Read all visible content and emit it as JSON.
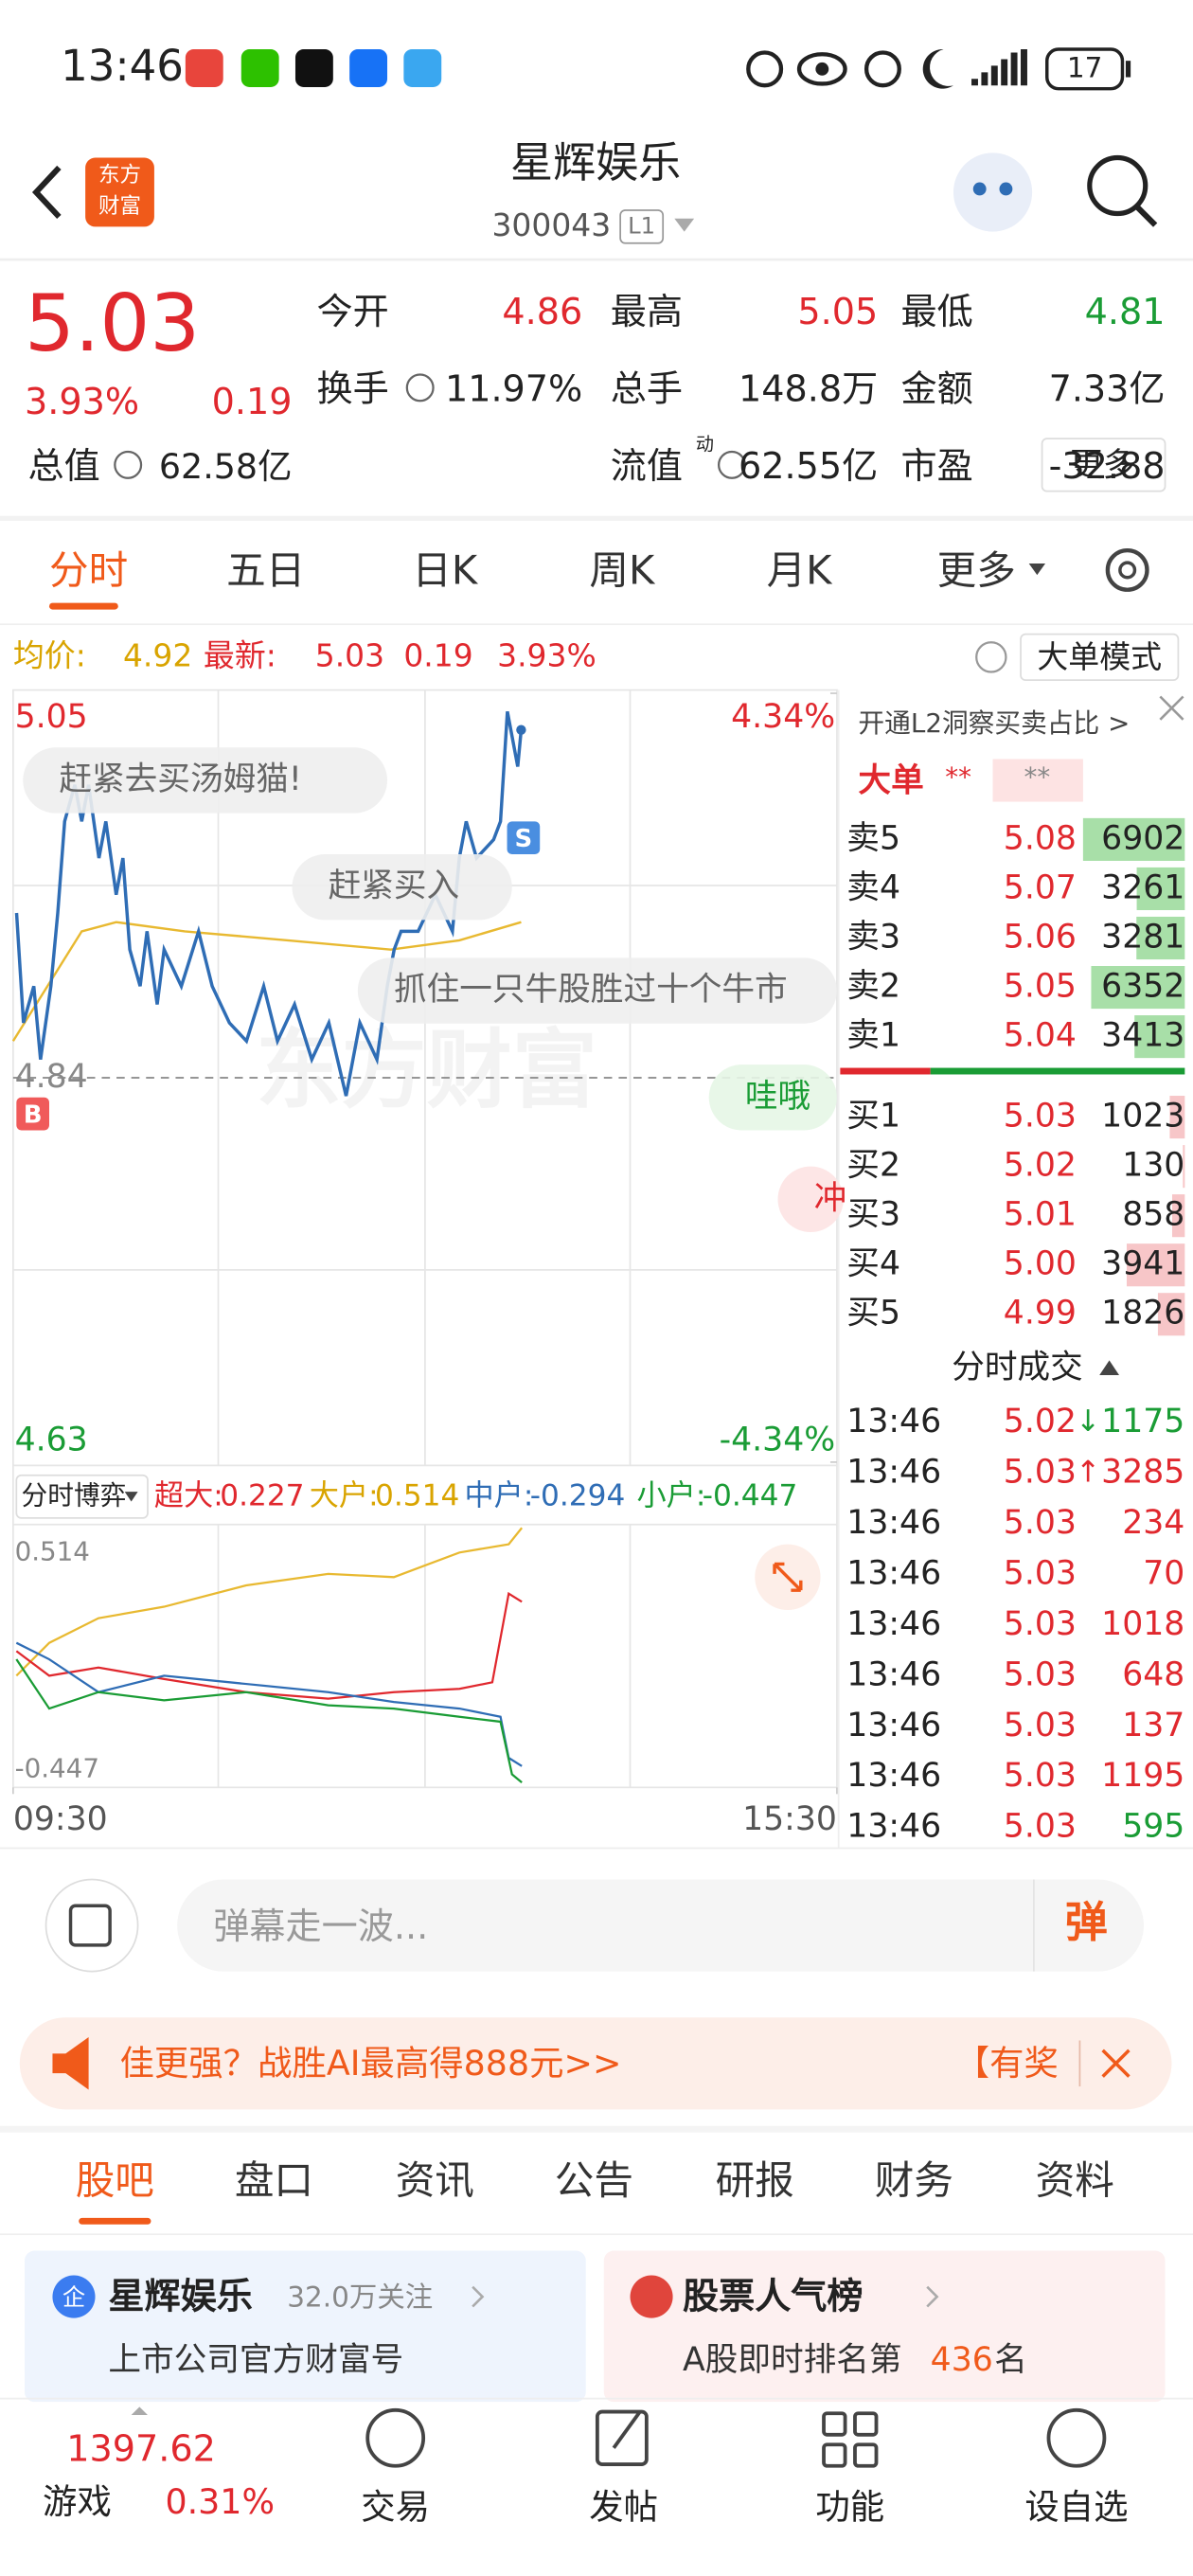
{
  "status_bar": {
    "time": "13:46",
    "battery": "17"
  },
  "header": {
    "logo": [
      "东方",
      "财富"
    ],
    "title": "星辉娱乐",
    "code": "300043",
    "level": "L1"
  },
  "quote": {
    "price": "5.03",
    "change_pct": "3.93%",
    "change": "0.19",
    "total_value": {
      "label": "总值",
      "value": "62.58亿"
    },
    "fields": [
      {
        "label": "今开",
        "value": "4.86",
        "color": "#e0282e"
      },
      {
        "label": "最高",
        "value": "5.05",
        "color": "#e0282e"
      },
      {
        "label": "最低",
        "value": "4.81",
        "color": "#1a9c35"
      },
      {
        "label": "换手",
        "value": "11.97%",
        "color": "#222222"
      },
      {
        "label": "总手",
        "value": "148.8万",
        "color": "#222222"
      },
      {
        "label": "金额",
        "value": "7.33亿",
        "color": "#222222"
      },
      {
        "label": "流值",
        "value": "62.55亿",
        "color": "#222222"
      },
      {
        "label": "市盈",
        "sup": "动",
        "value": "-32.88",
        "color": "#222222"
      }
    ],
    "more": "更多"
  },
  "tabs": {
    "items": [
      "分时",
      "五日",
      "日K",
      "周K",
      "月K",
      "更多"
    ],
    "active": 0
  },
  "info_bar": {
    "avg_label": "均价:",
    "avg": "4.92",
    "latest_label": "最新:",
    "latest": "5.03",
    "change": "0.19",
    "change_pct": "3.93%",
    "mode": "大单模式"
  },
  "chart_data": {
    "type": "line",
    "watermark": "东方财富",
    "xlim": [
      0,
      240
    ],
    "xticks": [
      {
        "value": 0,
        "label": "09:30"
      },
      {
        "value": 240,
        "label": "15:30"
      }
    ],
    "ylim": [
      4.63,
      5.05
    ],
    "yticks": [
      5.05,
      4.84,
      4.63
    ],
    "y2lim": [
      -4.34,
      4.34
    ],
    "y2ticks": [
      {
        "value": 4.34,
        "label": "4.34%"
      },
      {
        "value": -4.34,
        "label": "-4.34%"
      }
    ],
    "series": [
      {
        "name": "price",
        "color": "#2f6db5",
        "x": [
          1,
          3,
          6,
          8,
          11,
          13,
          15,
          18,
          20,
          22,
          25,
          27,
          30,
          32,
          34,
          37,
          39,
          42,
          44,
          49,
          54,
          58,
          63,
          68,
          73,
          77,
          82,
          87,
          92,
          97,
          101,
          106,
          109,
          111,
          113,
          118,
          123,
          128,
          130,
          132,
          135,
          140,
          142,
          144,
          147,
          148
        ],
        "values": [
          4.93,
          4.87,
          4.89,
          4.85,
          4.89,
          4.93,
          4.98,
          5.0,
          4.98,
          5.0,
          4.96,
          4.98,
          4.94,
          4.96,
          4.91,
          4.89,
          4.92,
          4.88,
          4.91,
          4.89,
          4.92,
          4.89,
          4.87,
          4.86,
          4.89,
          4.86,
          4.88,
          4.85,
          4.87,
          4.83,
          4.87,
          4.85,
          4.89,
          4.91,
          4.92,
          4.92,
          4.94,
          4.92,
          4.96,
          4.98,
          4.96,
          4.97,
          4.98,
          5.04,
          5.01,
          5.03
        ]
      },
      {
        "name": "avg",
        "color": "#e8b931",
        "x": [
          0,
          10,
          20,
          30,
          50,
          80,
          110,
          130,
          148
        ],
        "values": [
          4.86,
          4.89,
          4.92,
          4.925,
          4.92,
          4.915,
          4.91,
          4.915,
          4.925
        ]
      }
    ],
    "markers": [
      "B",
      "S"
    ],
    "danmaku": [
      "赶紧去买汤姆猫!",
      "赶紧买入",
      "抓住一只牛股胜过十个牛市",
      "哇哦",
      "冲"
    ]
  },
  "flow_bar": {
    "selector": "分时博弈",
    "items": [
      {
        "label": "超大:",
        "value": "0.227",
        "color": "#e0282e"
      },
      {
        "label": "大户:",
        "value": "0.514",
        "color": "#d9a400"
      },
      {
        "label": "中户:",
        "value": "-0.294",
        "color": "#2f6db5"
      },
      {
        "label": "小户:",
        "value": "-0.447",
        "color": "#1a9c35"
      }
    ],
    "max_label": "0.514",
    "min_label": "-0.447"
  },
  "order_book": {
    "promo": "开通L2洞察买卖占比 >",
    "big_order": "大单",
    "mask": [
      "**",
      "**"
    ],
    "sell": [
      {
        "label": "卖5",
        "price": "5.08",
        "volume": 6902
      },
      {
        "label": "卖4",
        "price": "5.07",
        "volume": 3261
      },
      {
        "label": "卖3",
        "price": "5.06",
        "volume": 3281
      },
      {
        "label": "卖2",
        "price": "5.05",
        "volume": 6352
      },
      {
        "label": "卖1",
        "price": "5.04",
        "volume": 3413
      }
    ],
    "buy": [
      {
        "label": "买1",
        "price": "5.03",
        "volume": 1023
      },
      {
        "label": "买2",
        "price": "5.02",
        "volume": 130
      },
      {
        "label": "买3",
        "price": "5.01",
        "volume": 858
      },
      {
        "label": "买4",
        "price": "5.00",
        "volume": 3941
      },
      {
        "label": "买5",
        "price": "4.99",
        "volume": 1826
      }
    ]
  },
  "trades": {
    "title": "分时成交",
    "rows": [
      {
        "time": "13:46",
        "price": "5.02",
        "arrow": "↓",
        "volume": "1175",
        "color": "#1a9c35"
      },
      {
        "time": "13:46",
        "price": "5.03",
        "arrow": "↑",
        "volume": "3285",
        "color": "#e0282e"
      },
      {
        "time": "13:46",
        "price": "5.03",
        "volume": "234",
        "color": "#e0282e"
      },
      {
        "time": "13:46",
        "price": "5.03",
        "volume": "70",
        "color": "#e0282e"
      },
      {
        "time": "13:46",
        "price": "5.03",
        "volume": "1018",
        "color": "#e0282e"
      },
      {
        "time": "13:46",
        "price": "5.03",
        "volume": "648",
        "color": "#e0282e"
      },
      {
        "time": "13:46",
        "price": "5.03",
        "volume": "137",
        "color": "#e0282e"
      },
      {
        "time": "13:46",
        "price": "5.03",
        "volume": "1195",
        "color": "#e0282e"
      },
      {
        "time": "13:46",
        "price": "5.03",
        "volume": "595",
        "color": "#1a9c35"
      }
    ]
  },
  "comment": {
    "placeholder": "弹幕走一波...",
    "send": "弹"
  },
  "banner": {
    "text": "佳更强？战胜AI最高得888元>>",
    "reward": "【有奖"
  },
  "section_tabs": {
    "items": [
      "股吧",
      "盘口",
      "资讯",
      "公告",
      "研报",
      "财务",
      "资料"
    ],
    "active": 0
  },
  "cards": {
    "left": {
      "icon": "企",
      "title": "星辉娱乐",
      "followers": "32.0万关注",
      "subtitle": "上市公司官方财富号"
    },
    "right": {
      "title": "股票人气榜",
      "rank_prefix": "A股即时排名第",
      "rank": "436",
      "rank_suffix": "名"
    }
  },
  "nav": {
    "index_value": "1397.62",
    "index_name": "游戏",
    "index_change": "0.31%",
    "items": [
      "交易",
      "发帖",
      "功能",
      "设自选"
    ]
  }
}
